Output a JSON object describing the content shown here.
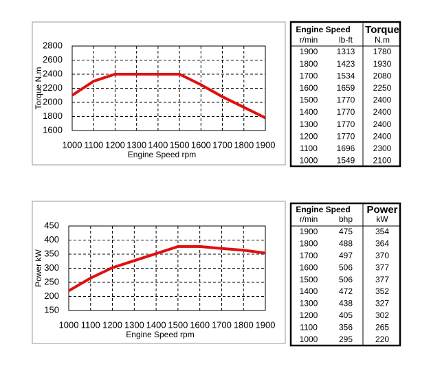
{
  "chart_data": [
    {
      "type": "line",
      "x_label": "Engine Speed rpm",
      "y_label": "Torque N.m",
      "x": [
        1000,
        1100,
        1200,
        1300,
        1400,
        1500,
        1600,
        1700,
        1800,
        1900
      ],
      "series": [
        {
          "name": "Torque",
          "color": "#e01010",
          "values": [
            2100,
            2300,
            2400,
            2400,
            2400,
            2400,
            2250,
            2080,
            1930,
            1780
          ]
        }
      ],
      "xlim": [
        1000,
        1900
      ],
      "xticks": [
        1000,
        1100,
        1200,
        1300,
        1400,
        1500,
        1600,
        1700,
        1800,
        1900
      ],
      "ylim": [
        1600,
        2800
      ],
      "yticks": [
        1600,
        1800,
        2000,
        2200,
        2400,
        2600,
        2800
      ],
      "grid": true
    },
    {
      "type": "line",
      "x_label": "Engine Speed rpm",
      "y_label": "Power kW",
      "x": [
        1000,
        1100,
        1200,
        1300,
        1400,
        1500,
        1600,
        1700,
        1800,
        1900
      ],
      "series": [
        {
          "name": "Power",
          "color": "#e01010",
          "values": [
            220,
            265,
            302,
            327,
            352,
            377,
            377,
            370,
            364,
            354
          ]
        }
      ],
      "xlim": [
        1000,
        1900
      ],
      "xticks": [
        1000,
        1100,
        1200,
        1300,
        1400,
        1500,
        1600,
        1700,
        1800,
        1900
      ],
      "ylim": [
        150,
        450
      ],
      "yticks": [
        150,
        200,
        250,
        300,
        350,
        400,
        450
      ],
      "grid": true
    }
  ],
  "tables": [
    {
      "header": [
        "Engine Speed",
        "Torque"
      ],
      "units": [
        "r/min",
        "lb-ft",
        "N.m"
      ],
      "rows": [
        [
          1900,
          1313,
          1780
        ],
        [
          1800,
          1423,
          1930
        ],
        [
          1700,
          1534,
          2080
        ],
        [
          1600,
          1659,
          2250
        ],
        [
          1500,
          1770,
          2400
        ],
        [
          1400,
          1770,
          2400
        ],
        [
          1300,
          1770,
          2400
        ],
        [
          1200,
          1770,
          2400
        ],
        [
          1100,
          1696,
          2300
        ],
        [
          1000,
          1549,
          2100
        ]
      ]
    },
    {
      "header": [
        "Engine Speed",
        "Power"
      ],
      "units": [
        "r/min",
        "bhp",
        "kW"
      ],
      "rows": [
        [
          1900,
          475,
          354
        ],
        [
          1800,
          488,
          364
        ],
        [
          1700,
          497,
          370
        ],
        [
          1600,
          506,
          377
        ],
        [
          1500,
          506,
          377
        ],
        [
          1400,
          472,
          352
        ],
        [
          1300,
          438,
          327
        ],
        [
          1200,
          405,
          302
        ],
        [
          1100,
          356,
          265
        ],
        [
          1000,
          295,
          220
        ]
      ]
    }
  ]
}
